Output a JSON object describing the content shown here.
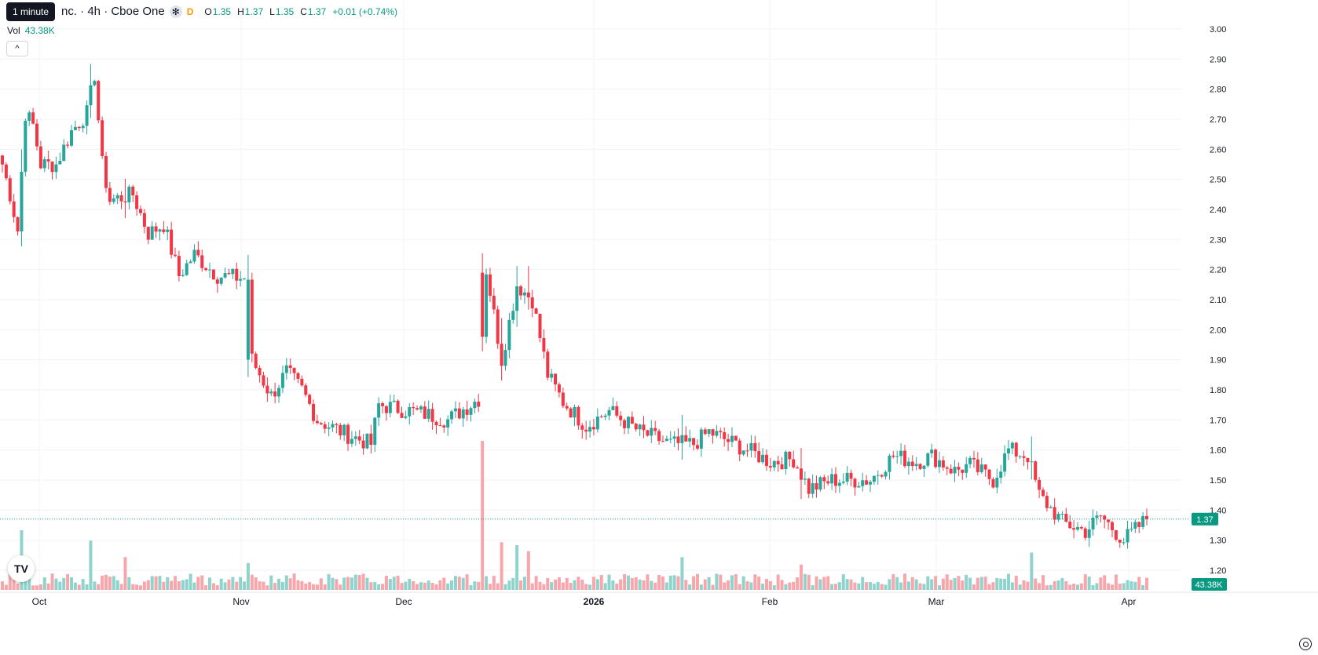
{
  "tooltip": "1 minute",
  "legend": {
    "symbol": "nc. · 4h · Cboe One",
    "badge_icon": "asterisk-icon",
    "badge_glyph": "✻",
    "interval_flag": "D",
    "open_label": "O",
    "open": "1.35",
    "high_label": "H",
    "high": "1.37",
    "low_label": "L",
    "low": "1.35",
    "close_label": "C",
    "close": "1.37",
    "change": "+0.01 (+0.74%)"
  },
  "volume": {
    "label": "Vol",
    "value": "43.38K"
  },
  "collapse_glyph": "^",
  "logo_text": "TV",
  "colors": {
    "up": "#26a69a",
    "down": "#f23645",
    "up_vol": "#8fd3cc",
    "down_vol": "#f7a6ac",
    "grid": "#f0f3fa",
    "axis_text": "#131722",
    "last_price_bg": "#089981"
  },
  "chart_data": {
    "type": "candlestick",
    "y_axis": {
      "ticks": [
        "3.00",
        "2.90",
        "2.80",
        "2.70",
        "2.60",
        "2.50",
        "2.40",
        "2.30",
        "2.20",
        "2.10",
        "2.00",
        "1.90",
        "1.80",
        "1.70",
        "1.60",
        "1.50",
        "1.40",
        "1.30",
        "1.20"
      ],
      "range": [
        1.15,
        3.05
      ]
    },
    "x_axis": {
      "ticks": [
        "Oct",
        "Nov",
        "Dec",
        "2026",
        "Feb",
        "Mar",
        "Apr"
      ]
    },
    "last_price": "1.37",
    "last_volume": "43.38K",
    "grid": true,
    "anchors": [
      {
        "i": 0,
        "p": 2.55
      },
      {
        "i": 2,
        "p": 2.45
      },
      {
        "i": 4,
        "p": 2.33
      },
      {
        "i": 6,
        "p": 2.72
      },
      {
        "i": 8,
        "p": 2.68
      },
      {
        "i": 10,
        "p": 2.55
      },
      {
        "i": 14,
        "p": 2.55
      },
      {
        "i": 18,
        "p": 2.66
      },
      {
        "i": 22,
        "p": 2.72
      },
      {
        "i": 24,
        "p": 2.85
      },
      {
        "i": 26,
        "p": 2.55
      },
      {
        "i": 28,
        "p": 2.43
      },
      {
        "i": 34,
        "p": 2.45
      },
      {
        "i": 38,
        "p": 2.32
      },
      {
        "i": 42,
        "p": 2.35
      },
      {
        "i": 46,
        "p": 2.18
      },
      {
        "i": 50,
        "p": 2.25
      },
      {
        "i": 56,
        "p": 2.18
      },
      {
        "i": 64,
        "p": 2.17
      },
      {
        "i": 65,
        "p": 1.9
      },
      {
        "i": 70,
        "p": 1.78
      },
      {
        "i": 74,
        "p": 1.86
      },
      {
        "i": 78,
        "p": 1.8
      },
      {
        "i": 82,
        "p": 1.7
      },
      {
        "i": 90,
        "p": 1.65
      },
      {
        "i": 96,
        "p": 1.62
      },
      {
        "i": 98,
        "p": 1.75
      },
      {
        "i": 110,
        "p": 1.72
      },
      {
        "i": 116,
        "p": 1.7
      },
      {
        "i": 124,
        "p": 1.77
      },
      {
        "i": 126,
        "p": 2.2
      },
      {
        "i": 130,
        "p": 1.9
      },
      {
        "i": 134,
        "p": 2.15
      },
      {
        "i": 138,
        "p": 2.1
      },
      {
        "i": 142,
        "p": 1.85
      },
      {
        "i": 146,
        "p": 1.76
      },
      {
        "i": 152,
        "p": 1.68
      },
      {
        "i": 158,
        "p": 1.73
      },
      {
        "i": 166,
        "p": 1.66
      },
      {
        "i": 174,
        "p": 1.62
      },
      {
        "i": 180,
        "p": 1.62
      },
      {
        "i": 184,
        "p": 1.66
      },
      {
        "i": 194,
        "p": 1.6
      },
      {
        "i": 200,
        "p": 1.56
      },
      {
        "i": 206,
        "p": 1.57
      },
      {
        "i": 210,
        "p": 1.47
      },
      {
        "i": 216,
        "p": 1.5
      },
      {
        "i": 226,
        "p": 1.5
      },
      {
        "i": 232,
        "p": 1.58
      },
      {
        "i": 238,
        "p": 1.56
      },
      {
        "i": 242,
        "p": 1.58
      },
      {
        "i": 248,
        "p": 1.53
      },
      {
        "i": 252,
        "p": 1.55
      },
      {
        "i": 258,
        "p": 1.5
      },
      {
        "i": 262,
        "p": 1.6
      },
      {
        "i": 267,
        "p": 1.58
      },
      {
        "i": 270,
        "p": 1.45
      },
      {
        "i": 276,
        "p": 1.36
      },
      {
        "i": 282,
        "p": 1.33
      },
      {
        "i": 286,
        "p": 1.38
      },
      {
        "i": 292,
        "p": 1.3
      },
      {
        "i": 298,
        "p": 1.37
      }
    ],
    "gaps": [
      {
        "i": 64,
        "p_from": 2.18,
        "p_to": 1.9
      },
      {
        "i": 125,
        "p_from": 1.78,
        "p_to": 2.2
      }
    ],
    "volume_spikes": [
      {
        "i": 5,
        "v": 0.4
      },
      {
        "i": 23,
        "v": 0.33
      },
      {
        "i": 32,
        "v": 0.22
      },
      {
        "i": 64,
        "v": 0.18
      },
      {
        "i": 125,
        "v": 1.0
      },
      {
        "i": 130,
        "v": 0.32
      },
      {
        "i": 134,
        "v": 0.3
      },
      {
        "i": 137,
        "v": 0.26
      },
      {
        "i": 177,
        "v": 0.22
      },
      {
        "i": 208,
        "v": 0.17
      },
      {
        "i": 268,
        "v": 0.25
      }
    ]
  }
}
